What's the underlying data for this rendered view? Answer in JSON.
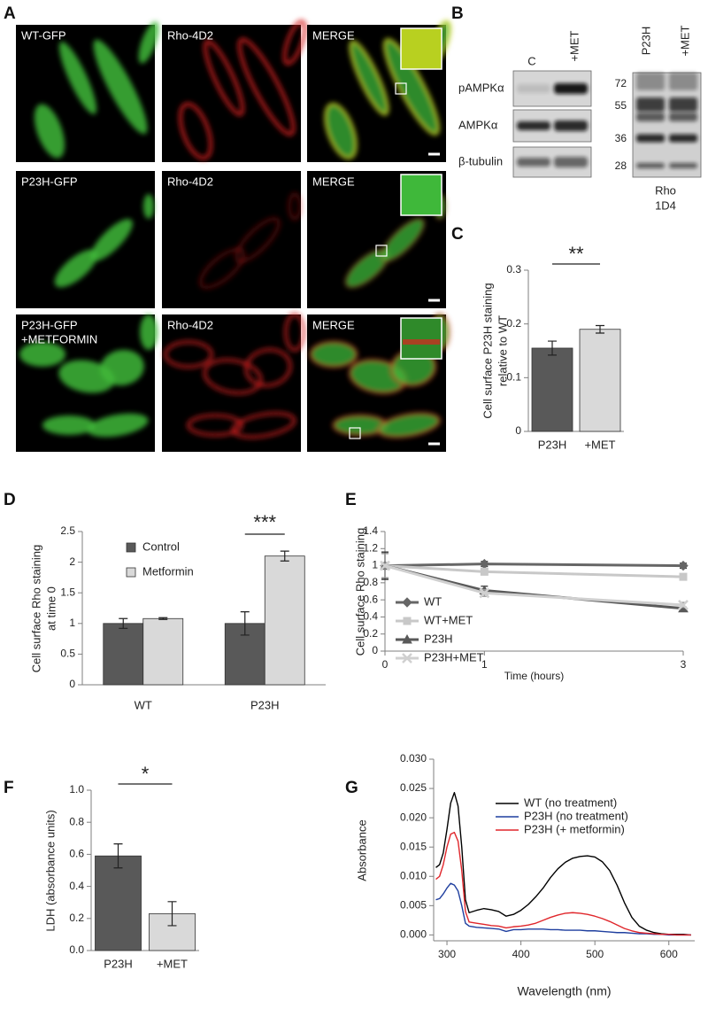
{
  "panel_a": {
    "panel": "A",
    "rows": [
      [
        "WT-GFP",
        "Rho-4D2",
        "MERGE"
      ],
      [
        "P23H-GFP",
        "Rho-4D2",
        "MERGE"
      ],
      [
        [
          "P23H-GFP",
          "+METFORMIN"
        ],
        "Rho-4D2",
        "MERGE"
      ]
    ]
  },
  "panel_b": {
    "panel": "B",
    "columns": [
      "C",
      "+MET"
    ],
    "rows": [
      "pAMPKα",
      "AMPKα",
      "β-tubulin"
    ],
    "rho_columns": [
      "P23H",
      "+MET"
    ],
    "markers": [
      72,
      55,
      36,
      28
    ],
    "antibody": [
      "Rho",
      "1D4"
    ]
  },
  "chart_data": [
    {
      "panel": "C",
      "type": "bar",
      "y_label": [
        "Cell surface P23H staining",
        "relative to WT"
      ],
      "categories": [
        "P23H",
        "+MET"
      ],
      "values": [
        0.155,
        0.19
      ],
      "errors": [
        0.013,
        0.007
      ],
      "colors": [
        "#595959",
        "#d9d9d9"
      ],
      "ylim": [
        0,
        0.3
      ],
      "yticks": [
        0,
        0.1,
        0.2,
        0.3
      ],
      "annotation": "**"
    },
    {
      "panel": "D",
      "type": "grouped_bar",
      "y_label": [
        "Cell surface Rho staining",
        "at time 0"
      ],
      "categories": [
        "WT",
        "P23H"
      ],
      "series": [
        {
          "name": "Control",
          "color": "#595959",
          "values": [
            1.0,
            1.0
          ],
          "errors": [
            0.08,
            0.19
          ]
        },
        {
          "name": "Metformin",
          "color": "#d9d9d9",
          "values": [
            1.08,
            2.1
          ],
          "errors": [
            0.015,
            0.08
          ]
        }
      ],
      "ylim": [
        0,
        2.5
      ],
      "yticks": [
        0,
        0.5,
        1,
        1.5,
        2,
        2.5
      ],
      "legend": "upper left",
      "annotation": "***"
    },
    {
      "panel": "E",
      "type": "line",
      "x_label": "Time (hours)",
      "y_label": "Cell surface Rho staining",
      "x": [
        0,
        1,
        3
      ],
      "xlim": [
        0,
        3
      ],
      "xticks": [
        0,
        1,
        3
      ],
      "ylim": [
        0,
        1.4
      ],
      "yticks": [
        0,
        0.2,
        0.4,
        0.6,
        0.8,
        1,
        1.2,
        1.4
      ],
      "legend": "lower left",
      "series": [
        {
          "name": "WT",
          "color": "#666666",
          "marker": "diamond",
          "values": [
            1.0,
            1.02,
            1.0
          ],
          "errors": [
            0.16,
            0.03,
            0.03
          ]
        },
        {
          "name": "WT+MET",
          "color": "#c8c8c8",
          "marker": "square",
          "values": [
            1.0,
            0.93,
            0.87
          ],
          "errors": [
            0.15,
            0.03,
            0.03
          ]
        },
        {
          "name": "P23H",
          "color": "#595959",
          "marker": "triangle",
          "values": [
            1.0,
            0.71,
            0.5
          ],
          "errors": [
            0.16,
            0.05,
            0.015
          ]
        },
        {
          "name": "P23H+MET",
          "color": "#d0d0d0",
          "marker": "x",
          "values": [
            1.0,
            0.68,
            0.54
          ],
          "errors": [
            0.14,
            0.04,
            0.03
          ]
        }
      ]
    },
    {
      "panel": "F",
      "type": "bar",
      "y_label": "LDH (absorbance units)",
      "categories": [
        "P23H",
        "+MET"
      ],
      "values": [
        0.59,
        0.23
      ],
      "errors": [
        0.075,
        0.075
      ],
      "colors": [
        "#595959",
        "#d9d9d9"
      ],
      "ylim": [
        0,
        1
      ],
      "yticks": [
        {
          "value": 0,
          "label": "0.0"
        },
        0.2,
        0.4,
        0.6,
        0.8,
        {
          "value": 1,
          "label": "1.0"
        }
      ],
      "annotation": "*"
    },
    {
      "panel": "G",
      "type": "line",
      "x_label": "Wavelength (nm)",
      "y_label": "Absorbance",
      "x": [
        285,
        290,
        295,
        300,
        305,
        310,
        315,
        320,
        325,
        330,
        340,
        350,
        360,
        370,
        380,
        390,
        400,
        410,
        420,
        430,
        440,
        450,
        460,
        470,
        480,
        490,
        500,
        510,
        520,
        530,
        540,
        550,
        560,
        570,
        580,
        590,
        600,
        610,
        620,
        630
      ],
      "xlim": [
        282,
        635
      ],
      "xticks": [
        300,
        400,
        500,
        600
      ],
      "ylim": [
        -0.001,
        0.03
      ],
      "yticks": [
        {
          "value": 0,
          "label": "0.000"
        },
        {
          "value": 0.005,
          "label": "0.005"
        },
        {
          "value": 0.01,
          "label": "0.010"
        },
        {
          "value": 0.015,
          "label": "0.015"
        },
        {
          "value": 0.02,
          "label": "0.020"
        },
        {
          "value": 0.025,
          "label": "0.025"
        },
        {
          "value": 0.03,
          "label": "0.030"
        }
      ],
      "legend": "upper right",
      "series": [
        {
          "name": "WT (no treatment)",
          "color": "#000000",
          "values": [
            0.0115,
            0.012,
            0.014,
            0.018,
            0.0225,
            0.0243,
            0.022,
            0.015,
            0.006,
            0.0038,
            0.0042,
            0.0045,
            0.0043,
            0.004,
            0.0032,
            0.0035,
            0.0042,
            0.0052,
            0.0065,
            0.008,
            0.0098,
            0.0113,
            0.0124,
            0.0131,
            0.0134,
            0.0135,
            0.0133,
            0.0125,
            0.011,
            0.0085,
            0.0055,
            0.003,
            0.0015,
            0.0008,
            0.0004,
            0.0002,
            0.0001,
            0.0001,
            0.0001,
            0
          ]
        },
        {
          "name": "P23H (no treatment)",
          "color": "#1f3f9f",
          "values": [
            0.006,
            0.0062,
            0.007,
            0.008,
            0.0088,
            0.0085,
            0.0075,
            0.005,
            0.002,
            0.0015,
            0.0013,
            0.0012,
            0.0011,
            0.001,
            0.0006,
            0.0009,
            0.0009,
            0.001,
            0.001,
            0.001,
            0.0009,
            0.0009,
            0.0008,
            0.0008,
            0.0008,
            0.0007,
            0.0007,
            0.0006,
            0.0005,
            0.0004,
            0.0004,
            0.0003,
            0.0002,
            0.0002,
            0.0001,
            0.0001,
            0,
            0,
            0,
            0
          ]
        },
        {
          "name": "P23H (+ metformin)",
          "color": "#e0262b",
          "values": [
            0.0095,
            0.01,
            0.012,
            0.015,
            0.0172,
            0.0175,
            0.016,
            0.011,
            0.004,
            0.0022,
            0.002,
            0.0018,
            0.0016,
            0.0015,
            0.0012,
            0.0014,
            0.0015,
            0.0017,
            0.002,
            0.0025,
            0.003,
            0.0034,
            0.0037,
            0.0038,
            0.0037,
            0.0035,
            0.0032,
            0.0028,
            0.0023,
            0.0017,
            0.0011,
            0.0007,
            0.0004,
            0.0003,
            0.0002,
            0.0001,
            0.0001,
            0,
            0,
            0
          ]
        }
      ]
    }
  ]
}
